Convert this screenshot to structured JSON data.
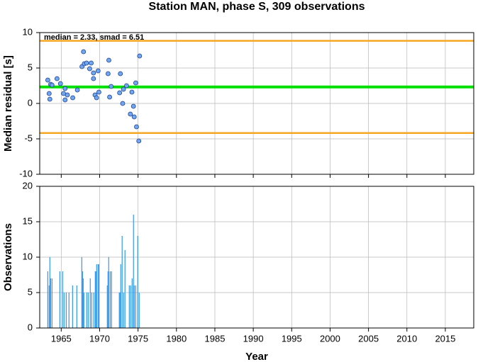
{
  "chart_data": [
    {
      "type": "scatter",
      "title": "Station MAN, phase S, 309 observations",
      "y_label": "Median residual [s]",
      "annotation": "median = 2.33, smad = 6.51",
      "x": [
        1963.25,
        1963.43,
        1963.52,
        1963.62,
        1963.8,
        1964.45,
        1964.9,
        1965.3,
        1965.5,
        1965.5,
        1965.8,
        1966.5,
        1967.1,
        1967.9,
        1967.7,
        1968.0,
        1968.3,
        1968.7,
        1968.9,
        1969.2,
        1969.2,
        1969.4,
        1969.6,
        1969.8,
        1969.9,
        1971.1,
        1971.2,
        1971.3,
        1971.5,
        1972.6,
        1972.7,
        1973.0,
        1973.1,
        1973.5,
        1974.0,
        1974.2,
        1974.4,
        1974.5,
        1974.7,
        1974.8,
        1975.1,
        1975.2
      ],
      "values": [
        3.3,
        1.4,
        0.6,
        2.7,
        2.6,
        3.5,
        2.8,
        1.4,
        2.1,
        0.5,
        1.2,
        0.8,
        1.9,
        7.3,
        5.2,
        5.6,
        5.7,
        4.9,
        5.7,
        3.5,
        4.3,
        1.2,
        0.8,
        4.6,
        1.6,
        4.2,
        6.1,
        0.9,
        2.4,
        1.5,
        4.2,
        0.0,
        2.0,
        2.5,
        -1.5,
        1.6,
        -0.4,
        -1.9,
        2.9,
        -3.3,
        -5.3,
        6.7
      ],
      "color": "#6fa8f0",
      "hlines": [
        {
          "value": 2.33,
          "color": "#00e000"
        },
        {
          "value": 8.84,
          "color": "#f5a623"
        },
        {
          "value": -4.18,
          "color": "#f5a623"
        }
      ],
      "xlim": [
        1962.2,
        2018.7
      ],
      "xticks": [
        1965,
        1970,
        1975,
        1980,
        1985,
        1990,
        1995,
        2000,
        2005,
        2010,
        2015
      ],
      "ylim": [
        -10,
        10
      ],
      "yticks": [
        -10,
        -5,
        0,
        5,
        10
      ],
      "grid": true
    },
    {
      "type": "bar",
      "x_label": "Year",
      "y_label": "Observations",
      "x": [
        1963.25,
        1963.43,
        1963.52,
        1963.62,
        1963.8,
        1964.82,
        1965.18,
        1965.37,
        1965.65,
        1966.01,
        1966.48,
        1967.03,
        1967.68,
        1967.77,
        1967.86,
        1967.95,
        1968.32,
        1968.51,
        1968.78,
        1968.97,
        1969.24,
        1969.43,
        1969.52,
        1969.61,
        1969.8,
        1969.89,
        1971.0,
        1971.09,
        1971.18,
        1971.37,
        1971.55,
        1972.56,
        1972.66,
        1972.75,
        1972.93,
        1973.12,
        1973.3,
        1973.86,
        1974.04,
        1974.23,
        1974.41,
        1974.5,
        1974.69,
        1974.96,
        1975.15
      ],
      "values": [
        8,
        6,
        10,
        7,
        7,
        8,
        8,
        5,
        5,
        5,
        6,
        6,
        10,
        8,
        7,
        5,
        5,
        5,
        7,
        5,
        5,
        8,
        8,
        9,
        9,
        9,
        6,
        8,
        10,
        8,
        8,
        5,
        5,
        9,
        13,
        5,
        11,
        6,
        6,
        7,
        16,
        6,
        6,
        13,
        5
      ],
      "color": "#3399ee",
      "xlim": [
        1962.2,
        2018.7
      ],
      "xticks": [
        1965,
        1970,
        1975,
        1980,
        1985,
        1990,
        1995,
        2000,
        2005,
        2010,
        2015
      ],
      "ylim": [
        0,
        20
      ],
      "yticks": [
        0,
        5,
        10,
        15,
        20
      ],
      "grid": true
    }
  ]
}
